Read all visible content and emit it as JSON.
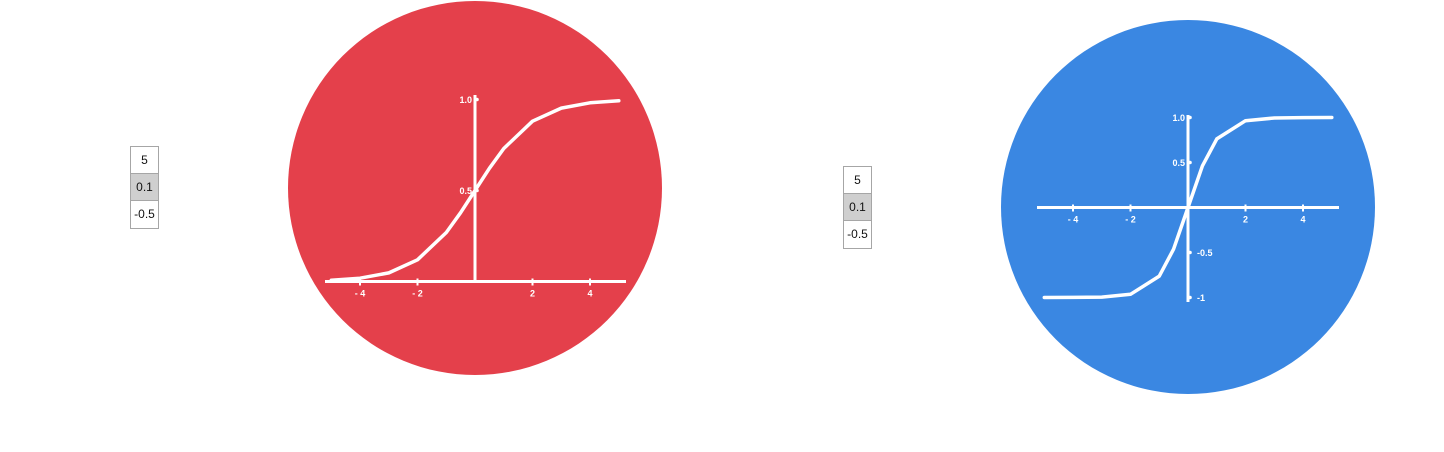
{
  "colors": {
    "sigmoid_disc": "#e4404b",
    "tanh_disc": "#3a87e2",
    "curve": "#ffffff"
  },
  "left_table": {
    "values": [
      "5",
      "0.1",
      "-0.5"
    ],
    "selected_index": 1
  },
  "right_table": {
    "values": [
      "5",
      "0.1",
      "-0.5"
    ],
    "selected_index": 1
  },
  "chart_data": [
    {
      "type": "line",
      "function": "sigmoid",
      "series": [
        {
          "x": [
            -5,
            -4,
            -3,
            -2,
            -1,
            -0.5,
            0,
            0.5,
            1,
            2,
            3,
            4,
            5
          ],
          "y": [
            0.007,
            0.018,
            0.047,
            0.119,
            0.269,
            0.378,
            0.5,
            0.622,
            0.731,
            0.881,
            0.953,
            0.982,
            0.993
          ]
        }
      ],
      "xlim": [
        -5,
        5
      ],
      "ylim": [
        0,
        1
      ],
      "x_ticks": [
        {
          "v": -4,
          "label": "- 4"
        },
        {
          "v": -2,
          "label": "- 2"
        },
        {
          "v": 2,
          "label": "2"
        },
        {
          "v": 4,
          "label": "4"
        }
      ],
      "y_ticks": [
        {
          "v": 1.0,
          "label": "1.0"
        },
        {
          "v": 0.5,
          "label": "0.5"
        }
      ]
    },
    {
      "type": "line",
      "function": "tanh",
      "series": [
        {
          "x": [
            -5,
            -4,
            -3,
            -2,
            -1,
            -0.5,
            0,
            0.5,
            1,
            2,
            3,
            4,
            5
          ],
          "y": [
            -0.9999,
            -0.999,
            -0.995,
            -0.964,
            -0.762,
            -0.462,
            0,
            0.462,
            0.762,
            0.964,
            0.995,
            0.999,
            0.9999
          ]
        }
      ],
      "xlim": [
        -5,
        5
      ],
      "ylim": [
        -1,
        1
      ],
      "x_ticks": [
        {
          "v": -4,
          "label": "- 4"
        },
        {
          "v": -2,
          "label": "- 2"
        },
        {
          "v": 2,
          "label": "2"
        },
        {
          "v": 4,
          "label": "4"
        }
      ],
      "y_ticks": [
        {
          "v": 1.0,
          "label": "1.0"
        },
        {
          "v": 0.5,
          "label": "0.5"
        },
        {
          "v": -0.5,
          "label": "-0.5"
        },
        {
          "v": -1,
          "label": "-1"
        }
      ]
    }
  ]
}
